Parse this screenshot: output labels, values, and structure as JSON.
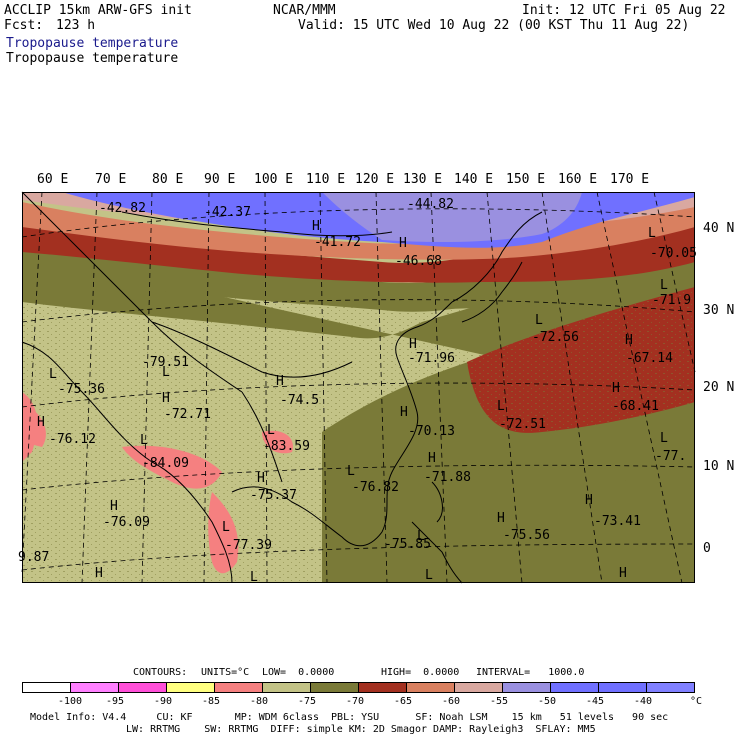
{
  "header": {
    "model": "ACCLIP 15km ARW-GFS init",
    "fcst_label": "Fcst:",
    "fcst_value": "123 h",
    "org": "NCAR/MMM",
    "init": "Init: 12 UTC Fri 05 Aug 22",
    "valid": "Valid: 15 UTC Wed 10 Aug 22 (00 KST Thu 11 Aug 22)",
    "field_1": "Tropopause temperature",
    "field_2": "Tropopause temperature"
  },
  "longitudes": [
    "60 E",
    "70 E",
    "80 E",
    "90 E",
    "100 E",
    "110 E",
    "120 E",
    "130 E",
    "140 E",
    "150 E",
    "160 E",
    "170 E"
  ],
  "latitudes": [
    "40 N",
    "30 N",
    "20 N",
    "10 N",
    "0"
  ],
  "map_labels": [
    {
      "text": "-42.82"
    },
    {
      "text": "-42.37"
    },
    {
      "text": "-44.82"
    },
    {
      "text": "-41.72"
    },
    {
      "text": "-46.68"
    },
    {
      "text": "-70.05"
    },
    {
      "text": "-71.9"
    },
    {
      "text": "-72.56"
    },
    {
      "text": "-67.14"
    },
    {
      "text": "-68.41"
    },
    {
      "text": "-79.51"
    },
    {
      "text": "-75.36"
    },
    {
      "text": "-74.5"
    },
    {
      "text": "-71.96"
    },
    {
      "text": "-72.71"
    },
    {
      "text": "-76.12"
    },
    {
      "text": "-70.13"
    },
    {
      "text": "-72.51"
    },
    {
      "text": "-77."
    },
    {
      "text": "-84.09"
    },
    {
      "text": "-83.59"
    },
    {
      "text": "-71.88"
    },
    {
      "text": "-76.82"
    },
    {
      "text": "-75.37"
    },
    {
      "text": "-73.41"
    },
    {
      "text": "-76.09"
    },
    {
      "text": "-75.56"
    },
    {
      "text": "-75.85"
    },
    {
      "text": "-77.39"
    },
    {
      "text": "9.87"
    }
  ],
  "contour_info": {
    "contours": "CONTOURS:",
    "units": "UNITS=°C",
    "low": "LOW=  0.0000",
    "high": "HIGH=  0.0000",
    "interval": "INTERVAL=   1000.0"
  },
  "legend": {
    "ticks": [
      "-100",
      "-95",
      "-90",
      "-85",
      "-80",
      "-75",
      "-70",
      "-65",
      "-60",
      "-55",
      "-50",
      "-45",
      "-40",
      "°C"
    ],
    "colors": [
      "#ffffff",
      "#ff80ff",
      "#ff4fd8",
      "#ffff80",
      "#f58080",
      "#c3c387",
      "#7a7a38",
      "#a33020",
      "#d98060",
      "#d9a8a0",
      "#9a90e0",
      "#7070ff",
      "#7070ff",
      "#8080ff"
    ]
  },
  "footer": {
    "line1": "Model Info: V4.4     CU: KF       MP: WDM 6class  PBL: YSU      SF: Noah LSM    15 km   51 levels   90 sec",
    "line2": "LW: RRTMG    SW: RRTMG  DIFF: simple KM: 2D Smagor DAMP: Rayleigh3  SFLAY: MM5"
  }
}
